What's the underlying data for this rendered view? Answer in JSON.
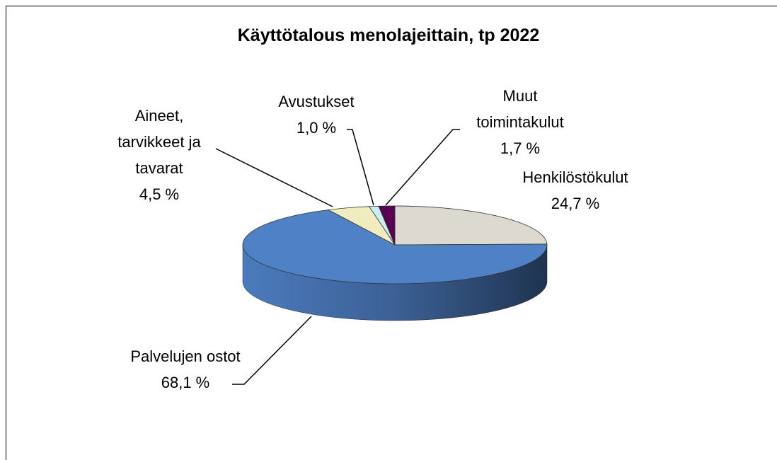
{
  "chart_data": {
    "type": "pie3d",
    "title": "Käyttötalous menolajeittain, tp 2022",
    "categories": [
      "Henkilöstökulut",
      "Palvelujen ostot",
      "Aineet, tarvikkeet ja tavarat",
      "Avustukset",
      "Muut toimintakulut"
    ],
    "values": [
      24.7,
      68.1,
      4.5,
      1.0,
      1.7
    ],
    "value_labels": [
      "24,7 %",
      "68,1 %",
      "4,5 %",
      "1,0 %",
      "1,7 %"
    ],
    "colors": [
      "#dcdad0",
      "#4f81c7",
      "#f0ecc0",
      "#c8eef0",
      "#5a0050"
    ]
  }
}
